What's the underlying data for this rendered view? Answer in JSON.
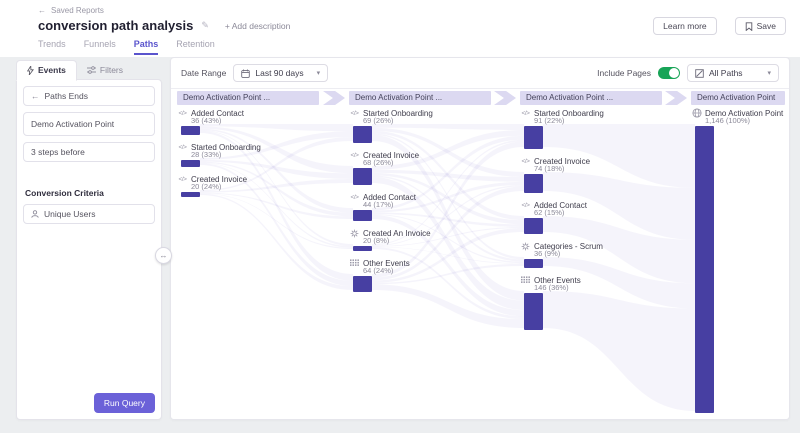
{
  "colors": {
    "accent": "#5a54cd",
    "bar": "#473fa2",
    "banner": "#dcd9f1",
    "ribbon": "#6c63c7",
    "toggle_on": "#18a457",
    "run_query": "#6b61d8"
  },
  "topbar": {
    "back": "Saved Reports",
    "title": "conversion path analysis",
    "add_description": "+ Add description",
    "learn_more": "Learn more",
    "save": "Save"
  },
  "report_tabs": [
    {
      "label": "Trends"
    },
    {
      "label": "Funnels"
    },
    {
      "label": "Paths",
      "active": true
    },
    {
      "label": "Retention"
    }
  ],
  "sidebar": {
    "tabs": [
      {
        "label": "Events",
        "active": true
      },
      {
        "label": "Filters",
        "active": false
      }
    ],
    "cards": [
      {
        "label": "Paths Ends",
        "has_back_arrow": true
      },
      {
        "label": "Demo Activation Point"
      },
      {
        "label": "3 steps before"
      }
    ],
    "criteria_label": "Conversion Criteria",
    "criteria_value": "Unique Users",
    "run_query": "Run Query"
  },
  "controls": {
    "date_range_label": "Date Range",
    "date_range_value": "Last 90 days",
    "include_pages_label": "Include Pages",
    "include_pages_on": true,
    "paths_filter_value": "All Paths"
  },
  "chart_data": {
    "type": "sankey",
    "description": "Conversion paths: 3 steps before Demo Activation Point",
    "columns": [
      {
        "header": "Demo Activation Point ...",
        "nodes": [
          {
            "icon": "code",
            "label": "Added Contact",
            "count": "36 (43%)",
            "value": 36,
            "pct": 43
          },
          {
            "icon": "code",
            "label": "Started Onboarding",
            "count": "28 (33%)",
            "value": 28,
            "pct": 33
          },
          {
            "icon": "code",
            "label": "Created Invoice",
            "count": "20 (24%)",
            "value": 20,
            "pct": 24
          }
        ]
      },
      {
        "header": "Demo Activation Point ...",
        "nodes": [
          {
            "icon": "code",
            "label": "Started Onboarding",
            "count": "69 (26%)",
            "value": 69,
            "pct": 26
          },
          {
            "icon": "code",
            "label": "Created Invoice",
            "count": "68 (26%)",
            "value": 68,
            "pct": 26
          },
          {
            "icon": "code",
            "label": "Added Contact",
            "count": "44 (17%)",
            "value": 44,
            "pct": 17
          },
          {
            "icon": "gear",
            "label": "Created An Invoice",
            "count": "20 (8%)",
            "value": 20,
            "pct": 8
          },
          {
            "icon": "grid",
            "label": "Other Events",
            "count": "64 (24%)",
            "value": 64,
            "pct": 24
          }
        ]
      },
      {
        "header": "Demo Activation Point ...",
        "nodes": [
          {
            "icon": "code",
            "label": "Started Onboarding",
            "count": "91 (22%)",
            "value": 91,
            "pct": 22
          },
          {
            "icon": "code",
            "label": "Created Invoice",
            "count": "74 (18%)",
            "value": 74,
            "pct": 18
          },
          {
            "icon": "code",
            "label": "Added Contact",
            "count": "62 (15%)",
            "value": 62,
            "pct": 15
          },
          {
            "icon": "gear",
            "label": "Categories - Scrum",
            "count": "36 (9%)",
            "value": 36,
            "pct": 9
          },
          {
            "icon": "grid",
            "label": "Other Events",
            "count": "146 (36%)",
            "value": 146,
            "pct": 36
          }
        ]
      },
      {
        "header": "Demo Activation Point",
        "nodes": [
          {
            "icon": "globe",
            "label": "Demo Activation Point",
            "count": "1,146 (100%)",
            "value": 1146,
            "pct": 100
          }
        ]
      }
    ]
  }
}
